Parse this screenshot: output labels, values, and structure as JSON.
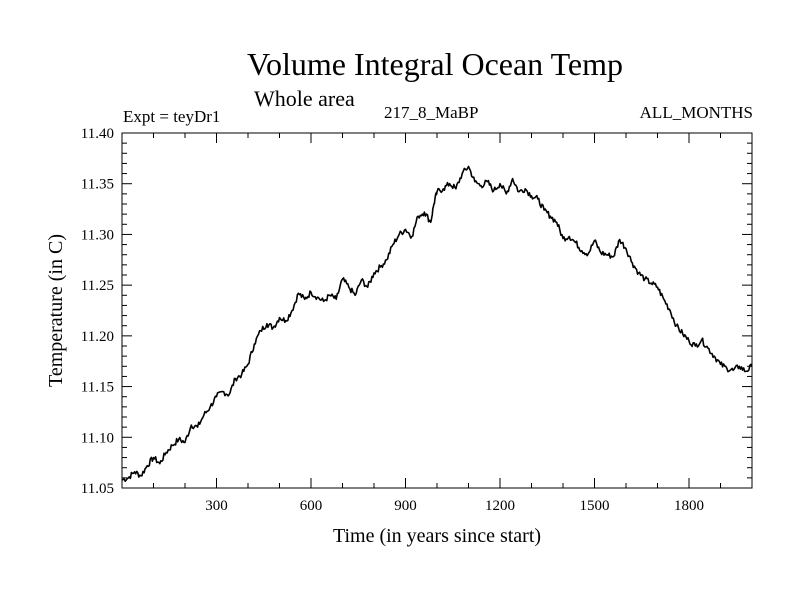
{
  "header": {
    "title": "Volume Integral Ocean Temp",
    "subtitle": "Whole area",
    "expt": "Expt = teyDr1",
    "center_label": "217_8_MaBP",
    "month_label": "ALL_MONTHS"
  },
  "chart_data": {
    "type": "line",
    "title": "Volume Integral Ocean Temp",
    "xlabel": "Time (in years since start)",
    "ylabel": "Temperature (in C)",
    "xlim": [
      0,
      2000
    ],
    "ylim": [
      11.05,
      11.4
    ],
    "xticks": [
      300,
      600,
      900,
      1200,
      1500,
      1800
    ],
    "xtick_labels": [
      "300",
      "600",
      "900",
      "1200",
      "1500",
      "1800"
    ],
    "yticks": [
      11.05,
      11.1,
      11.15,
      11.2,
      11.25,
      11.3,
      11.35,
      11.4
    ],
    "ytick_labels": [
      "11.05",
      "11.10",
      "11.15",
      "11.20",
      "11.25",
      "11.30",
      "11.35",
      "11.40"
    ],
    "grid": false,
    "line_color": "#000000",
    "series": [
      {
        "name": "Volume Integral Ocean Temp",
        "x": [
          0,
          20,
          40,
          60,
          80,
          100,
          120,
          140,
          160,
          180,
          200,
          220,
          240,
          260,
          280,
          300,
          320,
          340,
          360,
          380,
          400,
          420,
          440,
          460,
          480,
          500,
          520,
          540,
          560,
          580,
          600,
          620,
          640,
          660,
          680,
          700,
          720,
          740,
          760,
          780,
          800,
          820,
          840,
          860,
          880,
          900,
          920,
          940,
          960,
          980,
          990,
          1000,
          1020,
          1040,
          1060,
          1080,
          1100,
          1120,
          1140,
          1160,
          1180,
          1200,
          1220,
          1240,
          1260,
          1280,
          1300,
          1320,
          1340,
          1360,
          1380,
          1400,
          1420,
          1440,
          1460,
          1480,
          1500,
          1520,
          1540,
          1560,
          1580,
          1600,
          1620,
          1640,
          1660,
          1680,
          1700,
          1720,
          1740,
          1760,
          1780,
          1800,
          1820,
          1840,
          1860,
          1880,
          1900,
          1920,
          1940,
          1960,
          1980,
          2000
        ],
        "values": [
          11.058,
          11.06,
          11.066,
          11.062,
          11.072,
          11.08,
          11.074,
          11.085,
          11.092,
          11.098,
          11.095,
          11.112,
          11.11,
          11.122,
          11.13,
          11.14,
          11.145,
          11.142,
          11.158,
          11.162,
          11.172,
          11.192,
          11.205,
          11.212,
          11.208,
          11.218,
          11.215,
          11.225,
          11.242,
          11.236,
          11.243,
          11.238,
          11.234,
          11.24,
          11.236,
          11.256,
          11.248,
          11.24,
          11.255,
          11.248,
          11.262,
          11.268,
          11.275,
          11.29,
          11.3,
          11.305,
          11.298,
          11.318,
          11.322,
          11.312,
          11.33,
          11.342,
          11.345,
          11.35,
          11.345,
          11.36,
          11.367,
          11.352,
          11.348,
          11.352,
          11.343,
          11.35,
          11.34,
          11.355,
          11.342,
          11.345,
          11.338,
          11.335,
          11.324,
          11.318,
          11.312,
          11.296,
          11.298,
          11.292,
          11.284,
          11.281,
          11.294,
          11.282,
          11.28,
          11.278,
          11.295,
          11.286,
          11.272,
          11.262,
          11.256,
          11.252,
          11.248,
          11.236,
          11.225,
          11.21,
          11.202,
          11.195,
          11.19,
          11.196,
          11.188,
          11.18,
          11.172,
          11.168,
          11.166,
          11.17,
          11.165,
          11.17
        ]
      }
    ]
  }
}
